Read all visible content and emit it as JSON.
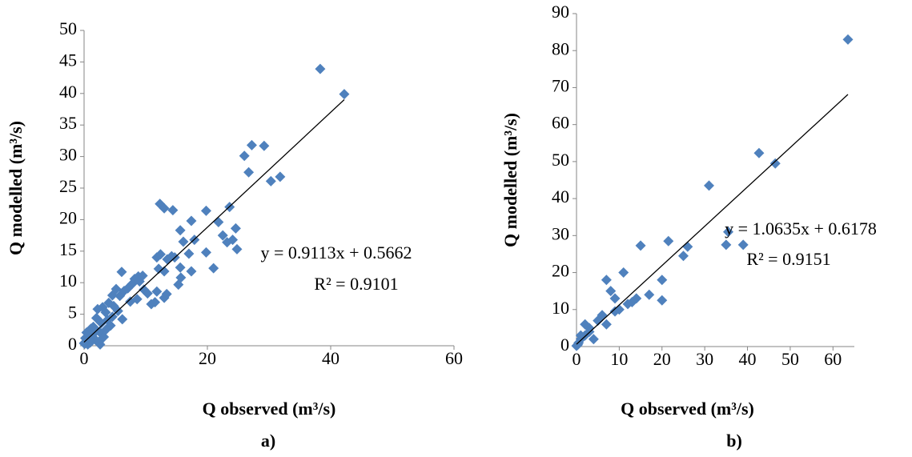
{
  "chart_data": [
    {
      "type": "scatter",
      "panel_label": "a)",
      "x_label": "Q observed (m³/s)",
      "y_label": "Q modelled (m³/s)",
      "color": "#4f81bd",
      "x": [
        42.2,
        38.3,
        27.2,
        29.2,
        26,
        26.7,
        30.3,
        31.8,
        12.3,
        13,
        14.4,
        19.8,
        23.6,
        17.4,
        21.8,
        22.5,
        24.1,
        24.8,
        23.2,
        24.6,
        19.8,
        21,
        17.4,
        16.1,
        15.6,
        17.9,
        17,
        14.7,
        15.6,
        15.3,
        15.7,
        11.8,
        12.4,
        13.5,
        12.1,
        13,
        11.8,
        13,
        13.4,
        10.9,
        9.7,
        8.8,
        7.8,
        6.1,
        7.1,
        5.8,
        8.2,
        9,
        7.5,
        6.5,
        5.2,
        4.6,
        5.5,
        6.2,
        4.8,
        4,
        3.5,
        3,
        2.2,
        3.8,
        4.3,
        2.8,
        2,
        1.5,
        2.5,
        3.2,
        1.2,
        0.8,
        0.5,
        0.3,
        0.1,
        0.2,
        0.6,
        1,
        1.8,
        2.4,
        1.4,
        0.4,
        2.6,
        3.6,
        4.6,
        1.1,
        0.7,
        0,
        1.9,
        8.6,
        10.3,
        11.5,
        9.5,
        14.2
      ],
      "values": [
        39.9,
        43.9,
        31.8,
        31.7,
        30.1,
        27.5,
        26.1,
        26.8,
        22.5,
        21.8,
        21.5,
        21.4,
        22,
        19.8,
        19.6,
        17.5,
        16.8,
        15.3,
        16.4,
        18.6,
        14.8,
        12.3,
        11.8,
        16.5,
        18.3,
        16.8,
        14.6,
        14,
        12.4,
        9.7,
        10.8,
        14,
        14.5,
        13.7,
        12.2,
        11.8,
        8.6,
        7.6,
        8.2,
        6.6,
        8.9,
        11,
        9.8,
        11.7,
        9.1,
        7.9,
        10.6,
        10.2,
        7,
        8.7,
        9,
        8,
        5.5,
        4.2,
        6.3,
        6.8,
        5.3,
        6.1,
        5.8,
        4.1,
        3.2,
        3.6,
        4.4,
        3,
        2.2,
        1.4,
        2.1,
        1.6,
        1,
        0.6,
        0.3,
        1.2,
        0.2,
        0.5,
        1,
        0.6,
        1.8,
        2.1,
        0.2,
        2.6,
        4.6,
        2.7,
        0.9,
        0.4,
        2.5,
        7.4,
        8.3,
        6.9,
        11.1,
        14.2
      ],
      "xlim": [
        0,
        60
      ],
      "xticks": [
        0,
        20,
        40,
        60
      ],
      "ylim": [
        0,
        50
      ],
      "yticks": [
        0,
        5,
        10,
        15,
        20,
        25,
        30,
        35,
        40,
        45,
        50
      ],
      "trendline": {
        "slope": 0.9113,
        "intercept": 0.5662
      },
      "annotations": [
        "y = 0.9113x + 0.5662",
        "R² = 0.9101"
      ]
    },
    {
      "type": "scatter",
      "panel_label": "b)",
      "x_label": "Q observed (m³/s)",
      "y_label": "Q modelled (m³/s)",
      "color": "#4f81bd",
      "x": [
        63.5,
        42.7,
        46.5,
        31,
        35.5,
        35,
        39,
        21.5,
        26,
        25,
        15,
        20,
        20,
        17,
        13,
        14,
        12,
        10,
        9,
        11,
        7,
        8,
        9,
        7,
        6,
        5,
        4,
        3,
        2,
        1,
        1,
        0.5,
        0.3,
        0,
        2,
        3
      ],
      "values": [
        83,
        52.3,
        49.5,
        43.5,
        31,
        27.5,
        27.5,
        28.5,
        27,
        24.5,
        27.3,
        18,
        12.5,
        14,
        12,
        13,
        11.5,
        10,
        9.5,
        20,
        18,
        15,
        13,
        6,
        8.5,
        7,
        2,
        5,
        6,
        2,
        3,
        1,
        0.5,
        0.2,
        3,
        4
      ],
      "xlim": [
        0,
        65
      ],
      "xticks": [
        0,
        10,
        20,
        30,
        40,
        50,
        60
      ],
      "ylim": [
        0,
        90
      ],
      "yticks": [
        0,
        10,
        20,
        30,
        40,
        50,
        60,
        70,
        80,
        90
      ],
      "trendline": {
        "slope": 1.0635,
        "intercept": 0.6178
      },
      "annotations": [
        "y = 1.0635x + 0.6178",
        "R² = 0.9151"
      ]
    }
  ]
}
